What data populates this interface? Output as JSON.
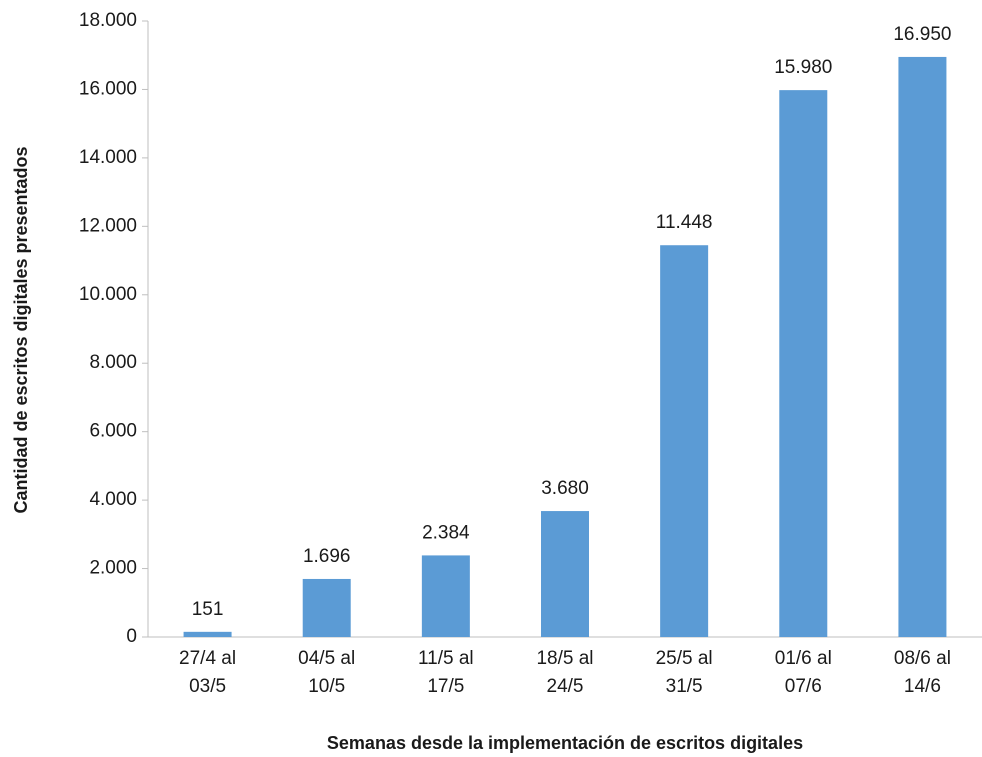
{
  "chart_data": {
    "type": "bar",
    "x_label": "Semanas desde la implementación de escritos digitales",
    "y_label": "Cantidad de escritos digitales presentados",
    "categories": [
      "27/4 al 03/5",
      "04/5 al 10/5",
      "11/5 al 17/5",
      "18/5 al 24/5",
      "25/5 al 31/5",
      "01/6 al 07/6",
      "08/6 al 14/6"
    ],
    "values": [
      151,
      1696,
      2384,
      3680,
      11448,
      15980,
      16950
    ],
    "value_labels": [
      "151",
      "1.696",
      "2.384",
      "3.680",
      "11.448",
      "15.980",
      "16.950"
    ],
    "color": "#5b9bd5",
    "ylim": [
      0,
      18000
    ],
    "yticks": [
      0,
      {
        "value": 2000,
        "label": "2.000"
      },
      {
        "value": 4000,
        "label": "4.000"
      },
      {
        "value": 6000,
        "label": "6.000"
      },
      {
        "value": 8000,
        "label": "8.000"
      },
      {
        "value": 10000,
        "label": "10.000"
      },
      {
        "value": 12000,
        "label": "12.000"
      },
      {
        "value": 14000,
        "label": "14.000"
      },
      {
        "value": 16000,
        "label": "16.000"
      },
      {
        "value": 18000,
        "label": "18.000"
      }
    ],
    "grid": false
  }
}
